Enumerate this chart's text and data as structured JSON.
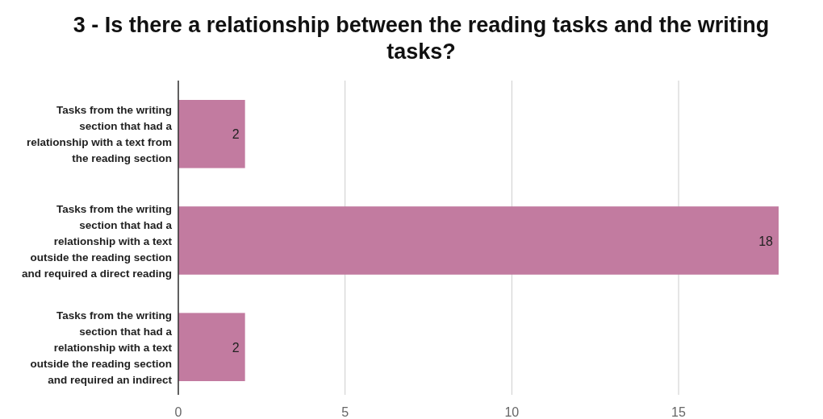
{
  "chart_data": {
    "type": "bar",
    "orientation": "horizontal",
    "title": "3 - Is there a relationship between the reading tasks and the writing\ntasks?",
    "categories": [
      "Tasks from the writing\nsection that had a\nrelationship with a text from\nthe reading section",
      "Tasks from the writing\nsection that had a\nrelationship with a text\noutside the reading section\nand required a direct reading",
      "Tasks from the writing\nsection that had a\nrelationship with a text\noutside the reading section\nand required an indirect"
    ],
    "values": [
      2,
      18,
      2
    ],
    "color": "#c27ba0",
    "data_labels": true,
    "xlim": [
      0,
      18
    ],
    "xticks": [
      0,
      5,
      10,
      15
    ],
    "grid": "x"
  }
}
